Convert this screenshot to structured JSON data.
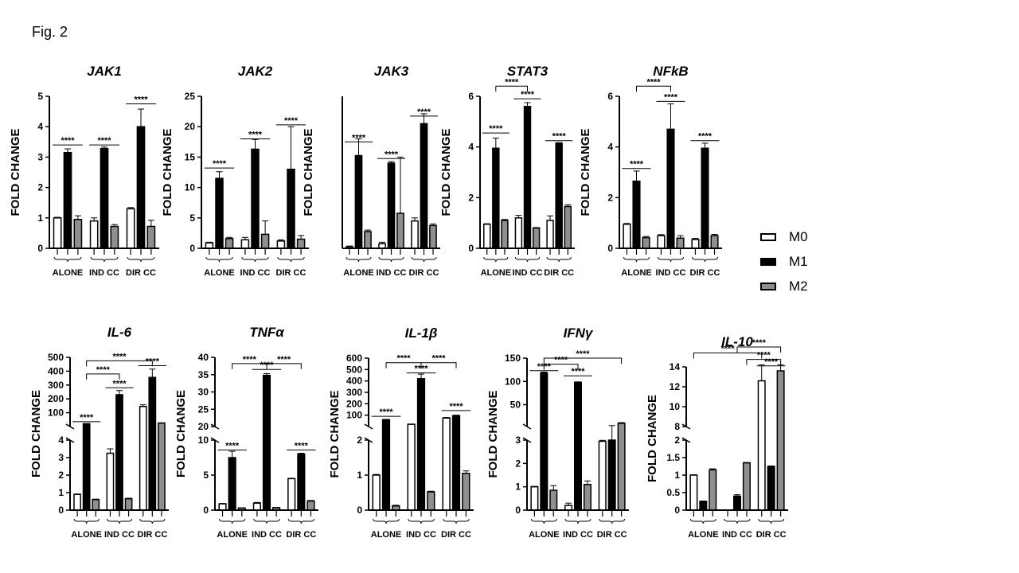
{
  "figure_label": "Fig. 2",
  "colors": {
    "M0": "#ffffff",
    "M1": "#000000",
    "M2": "#8f8f8f",
    "axis": "#000000"
  },
  "legend": [
    {
      "name": "M0",
      "label": "M0",
      "color": "#ffffff"
    },
    {
      "name": "M1",
      "label": "M1",
      "color": "#000000"
    },
    {
      "name": "M2",
      "label": "M2",
      "color": "#8f8f8f"
    }
  ],
  "chart_data": [
    {
      "type": "bar",
      "title": "JAK1",
      "ylabel": "FOLD CHANGE",
      "groups": [
        "ALONE",
        "IND CC",
        "DIR CC"
      ],
      "series_names": [
        "M0",
        "M1",
        "M2"
      ],
      "values": [
        [
          1.0,
          3.15,
          0.95
        ],
        [
          0.9,
          3.28,
          0.72
        ],
        [
          1.3,
          4.0,
          0.72
        ]
      ],
      "errors": [
        [
          0.02,
          0.12,
          0.12
        ],
        [
          0.1,
          0.05,
          0.06
        ],
        [
          0.04,
          0.58,
          0.2
        ]
      ],
      "ylim": [
        0,
        5
      ],
      "yticks": [
        0,
        1,
        2,
        3,
        4,
        5
      ],
      "significance": [
        {
          "label": "****",
          "level": 3.4,
          "from": [
            0,
            0
          ],
          "to": [
            0,
            2
          ]
        },
        {
          "label": "****",
          "level": 3.4,
          "from": [
            1,
            0
          ],
          "to": [
            1,
            2
          ]
        },
        {
          "label": "****",
          "level": 4.75,
          "from": [
            2,
            0
          ],
          "to": [
            2,
            2
          ]
        }
      ]
    },
    {
      "type": "bar",
      "title": "JAK2",
      "ylabel": "FOLD CHANGE",
      "groups": [
        "ALONE",
        "IND CC",
        "DIR CC"
      ],
      "series_names": [
        "M0",
        "M1",
        "M2"
      ],
      "values": [
        [
          0.9,
          11.5,
          1.6
        ],
        [
          1.4,
          16.3,
          2.3
        ],
        [
          1.2,
          13.0,
          1.5
        ]
      ],
      "errors": [
        [
          0.1,
          1.1,
          0.2
        ],
        [
          0.4,
          1.6,
          2.2
        ],
        [
          0.2,
          7.0,
          0.6
        ]
      ],
      "ylim": [
        0,
        25
      ],
      "yticks": [
        0,
        5,
        10,
        15,
        20,
        25
      ],
      "significance": [
        {
          "label": "****",
          "level": 13.2,
          "from": [
            0,
            0
          ],
          "to": [
            0,
            2
          ]
        },
        {
          "label": "****",
          "level": 18.0,
          "from": [
            1,
            0
          ],
          "to": [
            1,
            2
          ]
        },
        {
          "label": "****",
          "level": 20.3,
          "from": [
            2,
            0
          ],
          "to": [
            2,
            2
          ]
        }
      ]
    },
    {
      "type": "bar",
      "title": "JAK3",
      "ylabel": "FOLD CHANGE",
      "groups": [
        "ALONE",
        "IND CC",
        "DIR CC"
      ],
      "series_names": [
        "M0",
        "M1",
        "M2"
      ],
      "values": [
        [
          0.1,
          6.1,
          1.1
        ],
        [
          0.3,
          5.6,
          2.3
        ],
        [
          1.8,
          8.2,
          1.5
        ]
      ],
      "errors": [
        [
          0.05,
          1.1,
          0.1
        ],
        [
          0.1,
          0.1,
          3.7
        ],
        [
          0.2,
          0.65,
          0.1
        ]
      ],
      "ylim": [
        0,
        10
      ],
      "yticks": [],
      "significance": [
        {
          "label": "****",
          "level": 7.0,
          "from": [
            0,
            0
          ],
          "to": [
            0,
            2
          ]
        },
        {
          "label": "****",
          "level": 5.9,
          "from": [
            1,
            0
          ],
          "to": [
            1,
            2
          ]
        },
        {
          "label": "****",
          "level": 8.7,
          "from": [
            2,
            0
          ],
          "to": [
            2,
            2
          ]
        }
      ]
    },
    {
      "type": "bar",
      "title": "STAT3",
      "ylabel": "FOLD CHANGE",
      "groups": [
        "ALONE",
        "IND CC",
        "DIR CC"
      ],
      "series_names": [
        "M0",
        "M1",
        "M2"
      ],
      "values": [
        [
          0.95,
          3.95,
          1.1
        ],
        [
          1.2,
          5.6,
          0.8
        ],
        [
          1.1,
          4.15,
          1.65
        ]
      ],
      "errors": [
        [
          0.02,
          0.4,
          0.04
        ],
        [
          0.1,
          0.15,
          0.02
        ],
        [
          0.18,
          0.02,
          0.07
        ]
      ],
      "ylim": [
        0,
        6
      ],
      "yticks": [
        0,
        2,
        4,
        6
      ],
      "significance": [
        {
          "label": "****",
          "level": 4.55,
          "from": [
            0,
            0
          ],
          "to": [
            0,
            2
          ]
        },
        {
          "label": "****",
          "level": 5.9,
          "from": [
            1,
            0
          ],
          "to": [
            1,
            2
          ]
        },
        {
          "label": "****",
          "level": 4.25,
          "from": [
            2,
            0
          ],
          "to": [
            2,
            2
          ]
        },
        {
          "label": "****",
          "level": 6.4,
          "from": [
            0,
            1
          ],
          "to": [
            1,
            1
          ]
        }
      ]
    },
    {
      "type": "bar",
      "title": "NFkB",
      "ylabel": "FOLD CHANGE",
      "groups": [
        "ALONE",
        "IND CC",
        "DIR CC"
      ],
      "series_names": [
        "M0",
        "M1",
        "M2"
      ],
      "values": [
        [
          0.95,
          2.65,
          0.42
        ],
        [
          0.5,
          4.7,
          0.4
        ],
        [
          0.35,
          3.95,
          0.5
        ]
      ],
      "errors": [
        [
          0.03,
          0.4,
          0.05
        ],
        [
          0.04,
          1.0,
          0.1
        ],
        [
          0.04,
          0.2,
          0.05
        ]
      ],
      "ylim": [
        0,
        6
      ],
      "yticks": [
        0,
        2,
        4,
        6
      ],
      "significance": [
        {
          "label": "****",
          "level": 3.15,
          "from": [
            0,
            0
          ],
          "to": [
            0,
            2
          ]
        },
        {
          "label": "****",
          "level": 5.8,
          "from": [
            1,
            0
          ],
          "to": [
            1,
            2
          ]
        },
        {
          "label": "****",
          "level": 4.25,
          "from": [
            2,
            0
          ],
          "to": [
            2,
            2
          ]
        },
        {
          "label": "****",
          "level": 6.4,
          "from": [
            0,
            1
          ],
          "to": [
            1,
            1
          ]
        }
      ]
    },
    {
      "type": "bar",
      "title": "IL-6",
      "ylabel": "FOLD CHANGE",
      "groups": [
        "ALONE",
        "IND CC",
        "DIR CC"
      ],
      "series_names": [
        "M0",
        "M1",
        "M2"
      ],
      "values": [
        [
          0.9,
          20,
          0.6
        ],
        [
          3.25,
          230,
          0.65
        ],
        [
          145,
          355,
          25
        ]
      ],
      "errors": [
        [
          0.02,
          2,
          0.03
        ],
        [
          0.25,
          30,
          0.03
        ],
        [
          12,
          60,
          2
        ]
      ],
      "axis_break": {
        "lower": [
          0,
          4
        ],
        "upper": [
          0,
          500
        ]
      },
      "yticks_lower": [
        0,
        1,
        2,
        3,
        4
      ],
      "yticks_upper": [
        100,
        200,
        300,
        400,
        500
      ],
      "significance": [
        {
          "label": "****",
          "level": 35,
          "from": [
            0,
            0
          ],
          "to": [
            0,
            2
          ]
        },
        {
          "label": "****",
          "level": 280,
          "from": [
            1,
            0
          ],
          "to": [
            1,
            2
          ]
        },
        {
          "label": "****",
          "level": 440,
          "from": [
            2,
            0
          ],
          "to": [
            2,
            2
          ]
        },
        {
          "label": "****",
          "level": 380,
          "from": [
            0,
            1
          ],
          "to": [
            1,
            1
          ]
        },
        {
          "label": "****",
          "level": 475,
          "from": [
            0,
            1
          ],
          "to": [
            2,
            1
          ]
        }
      ]
    },
    {
      "type": "bar",
      "title": "TNFα",
      "ylabel": "FOLD CHANGE",
      "groups": [
        "ALONE",
        "IND CC",
        "DIR CC"
      ],
      "series_names": [
        "M0",
        "M1",
        "M2"
      ],
      "values": [
        [
          0.9,
          7.5,
          0.3
        ],
        [
          1.0,
          34.8,
          0.35
        ],
        [
          4.5,
          8.0,
          1.3
        ]
      ],
      "errors": [
        [
          0.05,
          0.9,
          0.03
        ],
        [
          0.1,
          0.5,
          0.03
        ],
        [
          0.05,
          0.12,
          0.08
        ]
      ],
      "axis_break": {
        "lower": [
          0,
          10
        ],
        "upper": [
          20,
          40
        ]
      },
      "yticks_lower": [
        0,
        5,
        10
      ],
      "yticks_upper": [
        20,
        25,
        30,
        35,
        40
      ],
      "significance": [
        {
          "label": "****",
          "level": 8.6,
          "from": [
            0,
            0
          ],
          "to": [
            0,
            2
          ]
        },
        {
          "label": "****",
          "level": 36.5,
          "from": [
            1,
            0
          ],
          "to": [
            1,
            2
          ]
        },
        {
          "label": "****",
          "level": 8.6,
          "from": [
            2,
            0
          ],
          "to": [
            2,
            2
          ]
        },
        {
          "label": "****",
          "level": 38.2,
          "from": [
            0,
            1
          ],
          "to": [
            1,
            1
          ]
        },
        {
          "label": "****",
          "level": 38.2,
          "from": [
            1,
            1
          ],
          "to": [
            2,
            1
          ]
        }
      ]
    },
    {
      "type": "bar",
      "title": "IL-1β",
      "ylabel": "FOLD CHANGE",
      "groups": [
        "ALONE",
        "IND CC",
        "DIR CC"
      ],
      "series_names": [
        "M0",
        "M1",
        "M2"
      ],
      "values": [
        [
          1.0,
          60,
          0.12
        ],
        [
          20,
          420,
          0.52
        ],
        [
          75,
          95,
          1.05
        ]
      ],
      "errors": [
        [
          0.02,
          3,
          0.02
        ],
        [
          2,
          40,
          0.02
        ],
        [
          5,
          5,
          0.07
        ]
      ],
      "axis_break": {
        "lower": [
          0,
          2
        ],
        "upper": [
          0,
          600
        ]
      },
      "yticks_lower": [
        0,
        1,
        2
      ],
      "yticks_upper": [
        100,
        200,
        300,
        400,
        500,
        600
      ],
      "significance": [
        {
          "label": "****",
          "level": 90,
          "from": [
            0,
            0
          ],
          "to": [
            0,
            2
          ]
        },
        {
          "label": "****",
          "level": 470,
          "from": [
            1,
            0
          ],
          "to": [
            1,
            2
          ]
        },
        {
          "label": "****",
          "level": 140,
          "from": [
            2,
            0
          ],
          "to": [
            2,
            2
          ]
        },
        {
          "label": "****",
          "level": 560,
          "from": [
            0,
            1
          ],
          "to": [
            1,
            1
          ]
        },
        {
          "label": "****",
          "level": 560,
          "from": [
            1,
            1
          ],
          "to": [
            2,
            1
          ]
        }
      ]
    },
    {
      "type": "bar",
      "title": "IFNγ",
      "ylabel": "FOLD CHANGE",
      "groups": [
        "ALONE",
        "IND CC",
        "DIR CC"
      ],
      "series_names": [
        "M0",
        "M1",
        "M2"
      ],
      "values": [
        [
          1.0,
          118,
          0.85
        ],
        [
          0.2,
          98,
          1.1
        ],
        [
          2.95,
          3.0,
          10
        ]
      ],
      "errors": [
        [
          0.02,
          2,
          0.2
        ],
        [
          0.1,
          1,
          0.15
        ],
        [
          0.04,
          2,
          1.5
        ]
      ],
      "axis_break": {
        "lower": [
          0,
          3
        ],
        "upper": [
          3,
          150
        ]
      },
      "yticks_lower": [
        0,
        1,
        2,
        3
      ],
      "yticks_upper": [
        50,
        100,
        150
      ],
      "significance": [
        {
          "label": "****",
          "level": 123,
          "from": [
            0,
            0
          ],
          "to": [
            0,
            2
          ]
        },
        {
          "label": "****",
          "level": 112,
          "from": [
            1,
            0
          ],
          "to": [
            1,
            2
          ]
        },
        {
          "label": "****",
          "level": 137,
          "from": [
            0,
            1
          ],
          "to": [
            1,
            1
          ]
        },
        {
          "label": "****",
          "level": 150,
          "from": [
            0,
            1
          ],
          "to": [
            2,
            2
          ]
        }
      ]
    },
    {
      "type": "bar",
      "title": "IL-10",
      "ylabel": "FOLD CHANGE",
      "groups": [
        "ALONE",
        "IND CC",
        "DIR CC"
      ],
      "series_names": [
        "M0",
        "M1",
        "M2"
      ],
      "values": [
        [
          1.0,
          0.25,
          1.15
        ],
        [
          0.0,
          0.4,
          1.35
        ],
        [
          12.6,
          1.25,
          13.6
        ]
      ],
      "errors": [
        [
          0.01,
          0.01,
          0.03
        ],
        [
          0.0,
          0.04,
          0.01
        ],
        [
          1.6,
          0.01,
          0.6
        ]
      ],
      "axis_break": {
        "lower": [
          0,
          2
        ],
        "upper": [
          8,
          14
        ]
      },
      "yticks_lower": [
        0.0,
        0.5,
        1.0,
        1.5,
        2.0
      ],
      "yticks_upper": [
        8,
        10,
        12,
        14
      ],
      "significance": [
        {
          "label": "****",
          "level": 14.1,
          "from": [
            2,
            0
          ],
          "to": [
            2,
            2
          ]
        },
        {
          "label": "****",
          "level": 14.75,
          "from": [
            1,
            2
          ],
          "to": [
            2,
            2
          ]
        },
        {
          "label": "****",
          "level": 15.4,
          "from": [
            0,
            0
          ],
          "to": [
            2,
            0
          ]
        },
        {
          "label": "****",
          "level": 16.0,
          "from": [
            1,
            1
          ],
          "to": [
            2,
            2
          ]
        }
      ]
    }
  ]
}
